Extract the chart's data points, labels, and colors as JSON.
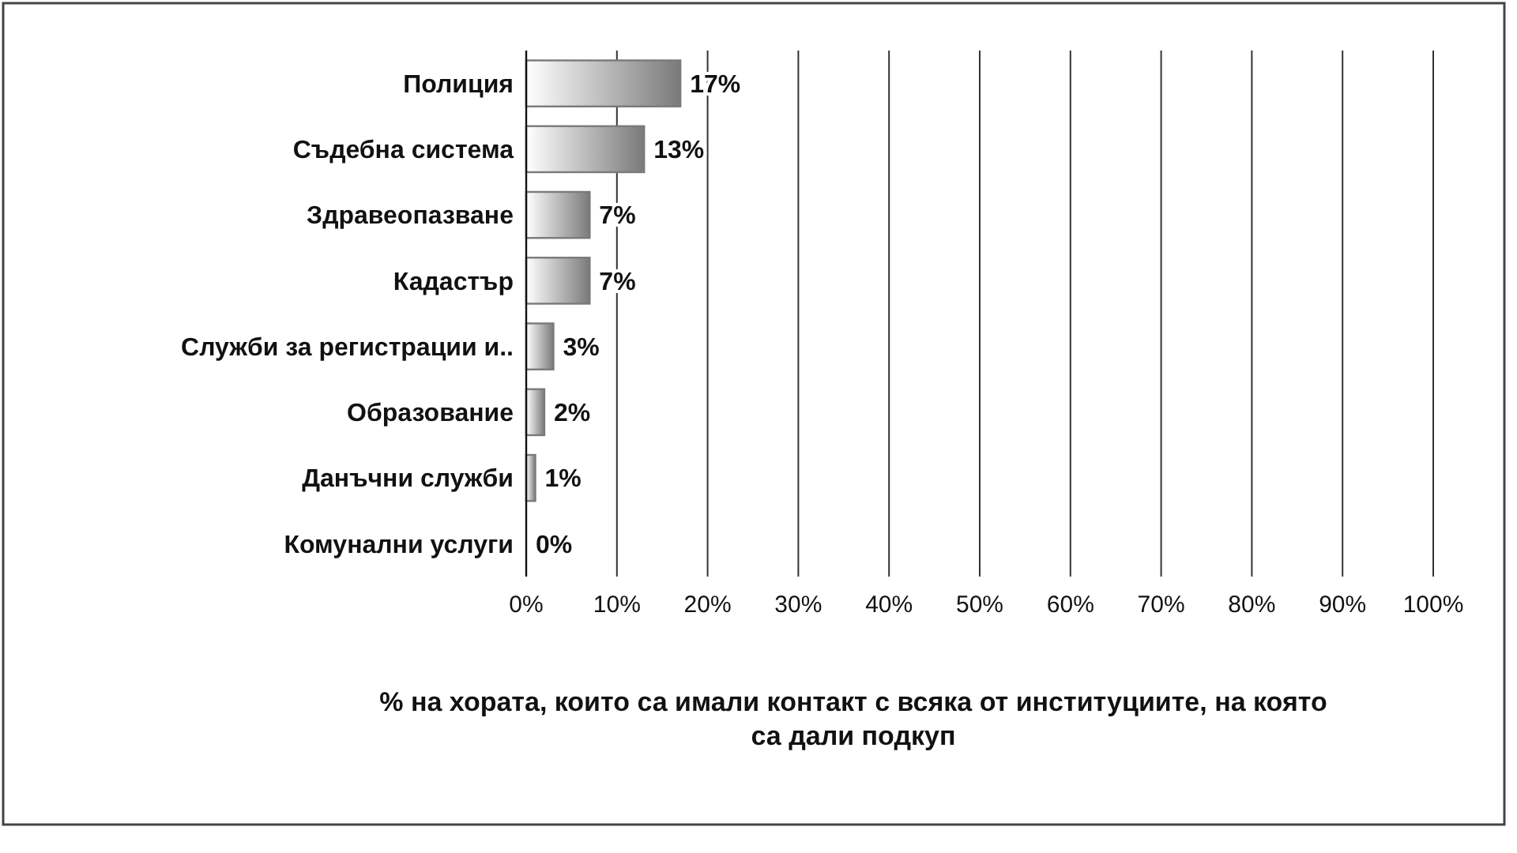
{
  "chart_data": {
    "type": "bar",
    "orientation": "horizontal",
    "categories": [
      "Полиция",
      "Съдебна система",
      "Здравеопазване",
      "Кадастър",
      "Служби за регистрации и..",
      "Образование",
      "Данъчни служби",
      "Комунални услуги"
    ],
    "values": [
      17,
      13,
      7,
      7,
      3,
      2,
      1,
      0
    ],
    "value_labels": [
      "17%",
      "13%",
      "7%",
      "7%",
      "3%",
      "2%",
      "1%",
      "0%"
    ],
    "color": "#7a7a7a",
    "xlim": [
      0,
      100
    ],
    "xticks": [
      {
        "value": 0,
        "label": "0%"
      },
      {
        "value": 10,
        "label": "10%"
      },
      {
        "value": 20,
        "label": "20%"
      },
      {
        "value": 30,
        "label": "30%"
      },
      {
        "value": 40,
        "label": "40%"
      },
      {
        "value": 50,
        "label": "50%"
      },
      {
        "value": 60,
        "label": "60%"
      },
      {
        "value": 70,
        "label": "70%"
      },
      {
        "value": 80,
        "label": "80%"
      },
      {
        "value": 90,
        "label": "90%"
      },
      {
        "value": 100,
        "label": "100%"
      }
    ],
    "grid": "x",
    "xlabel": "% на хората, които са имали контакт с всяка от институциите, на която са дали подкуп"
  }
}
